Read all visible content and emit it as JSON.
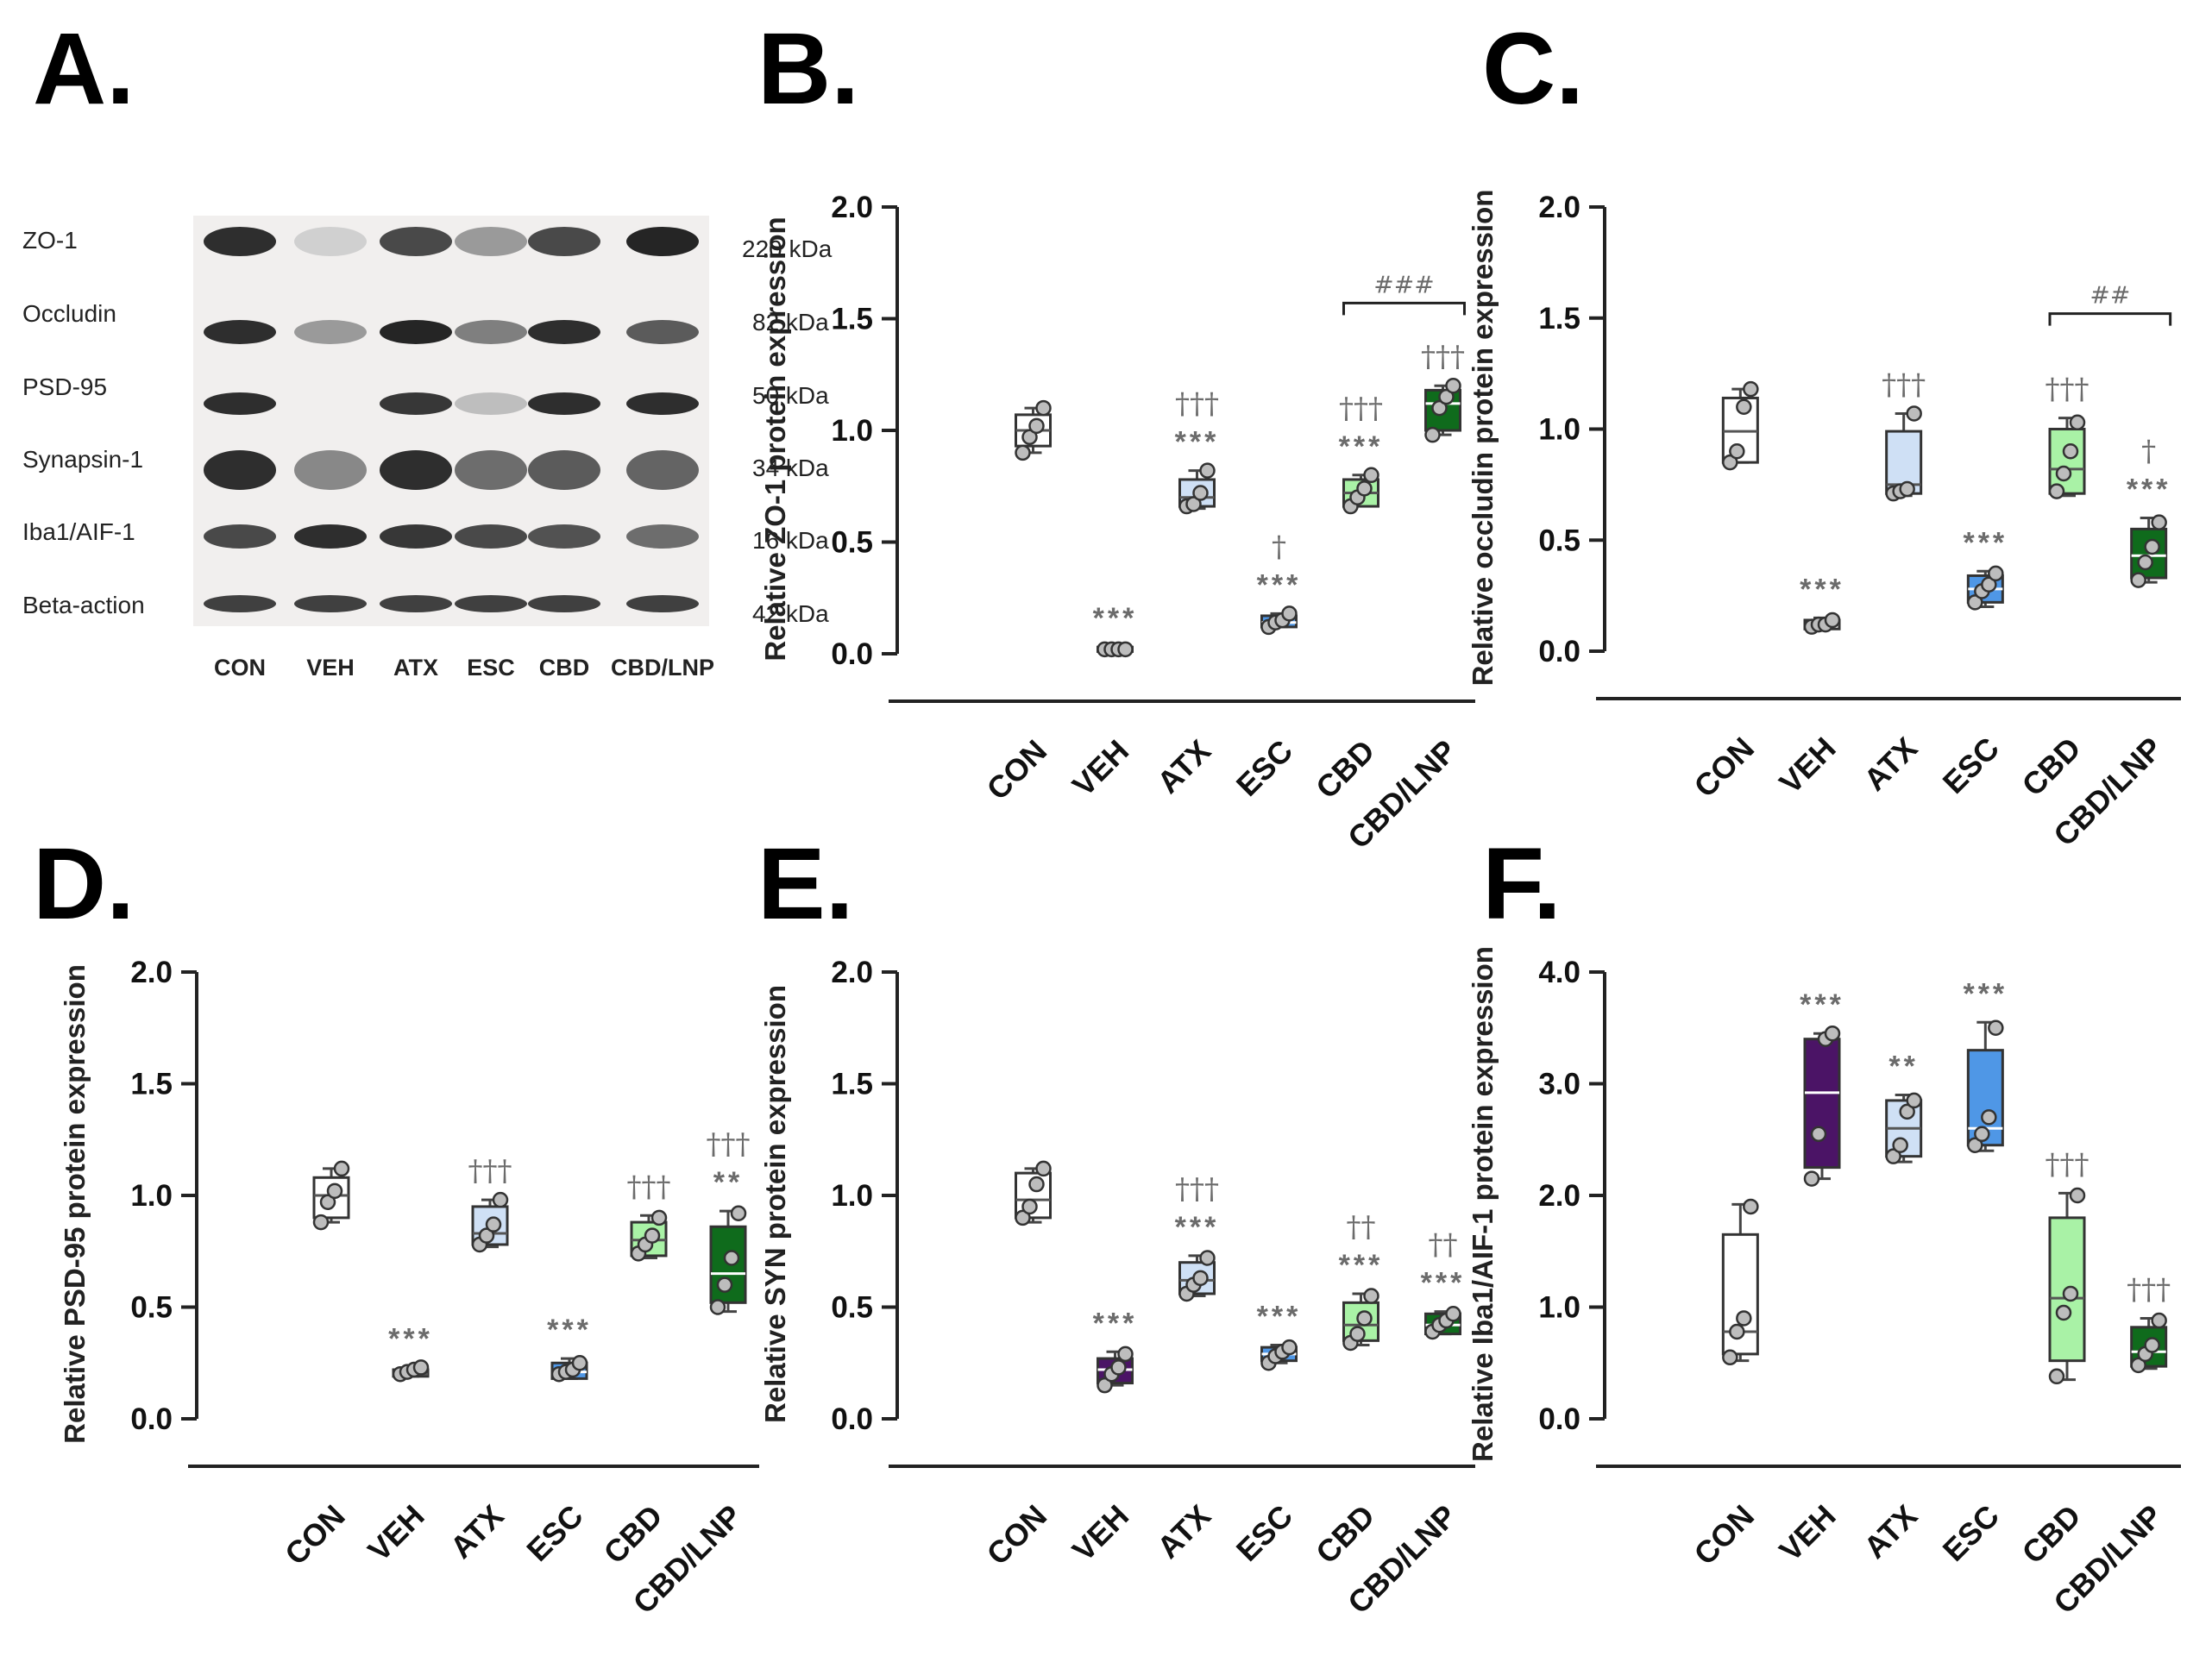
{
  "panel_labels": [
    "A.",
    "B.",
    "C.",
    "D.",
    "E.",
    "F."
  ],
  "blot": {
    "proteins": [
      "ZO-1",
      "Occludin",
      "PSD-95",
      "Synapsin-1",
      "Iba1/AIF-1",
      "Beta-action"
    ],
    "sizes": [
      "220 kDa",
      "82 kDa",
      "50 kDa",
      "34 kDa",
      "16 kDa",
      "42 kDa"
    ],
    "lanes": [
      "CON",
      "VEH",
      "ATX",
      "ESC",
      "CBD",
      "CBD/LNP"
    ],
    "band_intensity": [
      [
        0.95,
        0.05,
        0.8,
        0.35,
        0.8,
        1.0
      ],
      [
        0.95,
        0.35,
        1.0,
        0.5,
        0.95,
        0.7
      ],
      [
        0.95,
        0.0,
        0.9,
        0.15,
        0.95,
        0.95
      ],
      [
        0.95,
        0.45,
        0.95,
        0.6,
        0.7,
        0.65
      ],
      [
        0.8,
        0.95,
        0.9,
        0.8,
        0.75,
        0.6
      ],
      [
        0.85,
        0.85,
        0.85,
        0.85,
        0.85,
        0.85
      ]
    ]
  },
  "colors": {
    "CON": "#ffffff",
    "VEH": "#4b1466",
    "ATX": "#cfe0f5",
    "ESC": "#4f97e6",
    "CBD": "#a9f2a6",
    "CBD/LNP": "#0f6b1c",
    "sig_text": "#6b6b6b",
    "point": "#bdbdbd"
  },
  "chart_data": [
    {
      "panel": "B.",
      "type": "box",
      "ylabel": "Relative ZO-1 protein expression",
      "ylim": [
        0.0,
        2.0
      ],
      "yticks": [
        "0.0",
        "0.5",
        "1.0",
        "1.5",
        "2.0"
      ],
      "categories": [
        "CON",
        "VEH",
        "ATX",
        "ESC",
        "CBD",
        "CBD/LNP"
      ],
      "boxes": [
        {
          "group": "CON",
          "min": 0.9,
          "q1": 0.93,
          "median": 1.0,
          "q3": 1.07,
          "max": 1.1,
          "points": [
            0.9,
            0.97,
            1.02,
            1.1
          ],
          "fill": "#ffffff",
          "median_color": "#555555"
        },
        {
          "group": "VEH",
          "min": 0.01,
          "q1": 0.01,
          "median": 0.02,
          "q3": 0.03,
          "max": 0.03,
          "points": [
            0.02,
            0.02,
            0.02,
            0.02
          ],
          "fill": "#ffffff",
          "median_color": "#555555"
        },
        {
          "group": "ATX",
          "min": 0.65,
          "q1": 0.66,
          "median": 0.7,
          "q3": 0.78,
          "max": 0.82,
          "points": [
            0.66,
            0.67,
            0.72,
            0.82
          ],
          "fill": "#cfe0f5",
          "median_color": "#555555"
        },
        {
          "group": "ESC",
          "min": 0.12,
          "q1": 0.12,
          "median": 0.14,
          "q3": 0.17,
          "max": 0.18,
          "points": [
            0.12,
            0.14,
            0.15,
            0.18
          ],
          "fill": "#4f97e6",
          "median_color": "#ffffff"
        },
        {
          "group": "CBD",
          "min": 0.66,
          "q1": 0.66,
          "median": 0.72,
          "q3": 0.78,
          "max": 0.8,
          "points": [
            0.66,
            0.7,
            0.74,
            0.8
          ],
          "fill": "#a9f2a6",
          "median_color": "#555555"
        },
        {
          "group": "CBD/LNP",
          "min": 0.98,
          "q1": 1.0,
          "median": 1.12,
          "q3": 1.18,
          "max": 1.2,
          "points": [
            0.98,
            1.1,
            1.15,
            1.2
          ],
          "fill": "#0f6b1c",
          "median_color": "#ffffff"
        }
      ],
      "annotations": [
        {
          "group": "VEH",
          "lines": [
            "***"
          ]
        },
        {
          "group": "ATX",
          "lines": [
            "†††",
            "***"
          ]
        },
        {
          "group": "ESC",
          "lines": [
            "†",
            "***"
          ]
        },
        {
          "group": "CBD",
          "lines": [
            "†††",
            "***"
          ]
        },
        {
          "group": "CBD/LNP",
          "lines": [
            "†††"
          ]
        }
      ],
      "bracket": {
        "from": "CBD",
        "to": "CBD/LNP",
        "y": 1.57,
        "label": "###"
      }
    },
    {
      "panel": "C.",
      "type": "box",
      "ylabel": "Relative occludin protein expression",
      "ylim": [
        0.0,
        2.0
      ],
      "yticks": [
        "0.0",
        "0.5",
        "1.0",
        "1.5",
        "2.0"
      ],
      "categories": [
        "CON",
        "VEH",
        "ATX",
        "ESC",
        "CBD",
        "CBD/LNP"
      ],
      "boxes": [
        {
          "group": "CON",
          "min": 0.85,
          "q1": 0.85,
          "median": 0.99,
          "q3": 1.14,
          "max": 1.18,
          "points": [
            0.85,
            0.9,
            1.1,
            1.18
          ],
          "fill": "#ffffff",
          "median_color": "#555555"
        },
        {
          "group": "VEH",
          "min": 0.1,
          "q1": 0.1,
          "median": 0.12,
          "q3": 0.14,
          "max": 0.15,
          "points": [
            0.11,
            0.12,
            0.12,
            0.14
          ],
          "fill": "#ffffff",
          "median_color": "#555555"
        },
        {
          "group": "ATX",
          "min": 0.7,
          "q1": 0.71,
          "median": 0.75,
          "q3": 0.99,
          "max": 1.07,
          "points": [
            0.71,
            0.72,
            0.73,
            1.07
          ],
          "fill": "#cfe0f5",
          "median_color": "#555555"
        },
        {
          "group": "ESC",
          "min": 0.2,
          "q1": 0.22,
          "median": 0.28,
          "q3": 0.34,
          "max": 0.36,
          "points": [
            0.22,
            0.27,
            0.3,
            0.35
          ],
          "fill": "#4f97e6",
          "median_color": "#ffffff"
        },
        {
          "group": "CBD",
          "min": 0.7,
          "q1": 0.71,
          "median": 0.82,
          "q3": 1.0,
          "max": 1.05,
          "points": [
            0.72,
            0.8,
            0.9,
            1.03
          ],
          "fill": "#a9f2a6",
          "median_color": "#555555"
        },
        {
          "group": "CBD/LNP",
          "min": 0.31,
          "q1": 0.33,
          "median": 0.43,
          "q3": 0.55,
          "max": 0.6,
          "points": [
            0.32,
            0.4,
            0.47,
            0.58
          ],
          "fill": "#0f6b1c",
          "median_color": "#ffffff"
        }
      ],
      "annotations": [
        {
          "group": "VEH",
          "lines": [
            "***"
          ]
        },
        {
          "group": "ATX",
          "lines": [
            "†††"
          ]
        },
        {
          "group": "ESC",
          "lines": [
            "***"
          ]
        },
        {
          "group": "CBD",
          "lines": [
            "†††"
          ]
        },
        {
          "group": "CBD/LNP",
          "lines": [
            "†",
            "***"
          ]
        }
      ],
      "bracket": {
        "from": "CBD",
        "to": "CBD/LNP",
        "y": 1.52,
        "label": "##"
      }
    },
    {
      "panel": "D.",
      "type": "box",
      "ylabel": "Relative PSD-95 protein expression",
      "ylim": [
        0.0,
        2.0
      ],
      "yticks": [
        "0.0",
        "0.5",
        "1.0",
        "1.5",
        "2.0"
      ],
      "categories": [
        "CON",
        "VEH",
        "ATX",
        "ESC",
        "CBD",
        "CBD/LNP"
      ],
      "boxes": [
        {
          "group": "CON",
          "min": 0.88,
          "q1": 0.9,
          "median": 1.0,
          "q3": 1.08,
          "max": 1.12,
          "points": [
            0.88,
            0.97,
            1.02,
            1.12
          ],
          "fill": "#ffffff",
          "median_color": "#555555"
        },
        {
          "group": "VEH",
          "min": 0.19,
          "q1": 0.19,
          "median": 0.2,
          "q3": 0.22,
          "max": 0.23,
          "points": [
            0.2,
            0.21,
            0.22,
            0.23
          ],
          "fill": "#ffffff",
          "median_color": "#555555"
        },
        {
          "group": "ATX",
          "min": 0.77,
          "q1": 0.78,
          "median": 0.83,
          "q3": 0.95,
          "max": 0.98,
          "points": [
            0.78,
            0.82,
            0.87,
            0.98
          ],
          "fill": "#cfe0f5",
          "median_color": "#555555"
        },
        {
          "group": "ESC",
          "min": 0.18,
          "q1": 0.18,
          "median": 0.21,
          "q3": 0.25,
          "max": 0.27,
          "points": [
            0.2,
            0.21,
            0.22,
            0.25
          ],
          "fill": "#4f97e6",
          "median_color": "#ffffff"
        },
        {
          "group": "CBD",
          "min": 0.72,
          "q1": 0.73,
          "median": 0.8,
          "q3": 0.88,
          "max": 0.91,
          "points": [
            0.74,
            0.78,
            0.82,
            0.9
          ],
          "fill": "#a9f2a6",
          "median_color": "#555555"
        },
        {
          "group": "CBD/LNP",
          "min": 0.48,
          "q1": 0.52,
          "median": 0.65,
          "q3": 0.86,
          "max": 0.93,
          "points": [
            0.5,
            0.6,
            0.72,
            0.92
          ],
          "fill": "#0f6b1c",
          "median_color": "#ffffff"
        }
      ],
      "annotations": [
        {
          "group": "VEH",
          "lines": [
            "***"
          ]
        },
        {
          "group": "ATX",
          "lines": [
            "†††"
          ]
        },
        {
          "group": "ESC",
          "lines": [
            "***"
          ]
        },
        {
          "group": "CBD",
          "lines": [
            "†††"
          ]
        },
        {
          "group": "CBD/LNP",
          "lines": [
            "†††",
            "**"
          ]
        }
      ]
    },
    {
      "panel": "E.",
      "type": "box",
      "ylabel": "Relative SYN protein expression",
      "ylim": [
        0.0,
        2.0
      ],
      "yticks": [
        "0.0",
        "0.5",
        "1.0",
        "1.5",
        "2.0"
      ],
      "categories": [
        "CON",
        "VEH",
        "ATX",
        "ESC",
        "CBD",
        "CBD/LNP"
      ],
      "boxes": [
        {
          "group": "CON",
          "min": 0.88,
          "q1": 0.9,
          "median": 0.98,
          "q3": 1.1,
          "max": 1.12,
          "points": [
            0.9,
            0.95,
            1.05,
            1.12
          ],
          "fill": "#ffffff",
          "median_color": "#555555"
        },
        {
          "group": "VEH",
          "min": 0.15,
          "q1": 0.16,
          "median": 0.22,
          "q3": 0.27,
          "max": 0.3,
          "points": [
            0.15,
            0.2,
            0.23,
            0.29
          ],
          "fill": "#4b1466",
          "median_color": "#ffffff"
        },
        {
          "group": "ATX",
          "min": 0.55,
          "q1": 0.56,
          "median": 0.62,
          "q3": 0.7,
          "max": 0.73,
          "points": [
            0.56,
            0.6,
            0.63,
            0.72
          ],
          "fill": "#cfe0f5",
          "median_color": "#555555"
        },
        {
          "group": "ESC",
          "min": 0.25,
          "q1": 0.26,
          "median": 0.29,
          "q3": 0.32,
          "max": 0.33,
          "points": [
            0.25,
            0.28,
            0.3,
            0.32
          ],
          "fill": "#4f97e6",
          "median_color": "#ffffff"
        },
        {
          "group": "CBD",
          "min": 0.33,
          "q1": 0.35,
          "median": 0.42,
          "q3": 0.52,
          "max": 0.56,
          "points": [
            0.34,
            0.38,
            0.45,
            0.55
          ],
          "fill": "#a9f2a6",
          "median_color": "#555555"
        },
        {
          "group": "CBD/LNP",
          "min": 0.38,
          "q1": 0.38,
          "median": 0.42,
          "q3": 0.47,
          "max": 0.48,
          "points": [
            0.39,
            0.42,
            0.44,
            0.47
          ],
          "fill": "#0f6b1c",
          "median_color": "#ffffff"
        }
      ],
      "annotations": [
        {
          "group": "VEH",
          "lines": [
            "***"
          ]
        },
        {
          "group": "ATX",
          "lines": [
            "†††",
            "***"
          ]
        },
        {
          "group": "ESC",
          "lines": [
            "***"
          ]
        },
        {
          "group": "CBD",
          "lines": [
            "††",
            "***"
          ]
        },
        {
          "group": "CBD/LNP",
          "lines": [
            "††",
            "***"
          ]
        }
      ]
    },
    {
      "panel": "F.",
      "type": "box",
      "ylabel": "Relative Iba1/AIF-1 protein expression",
      "ylim": [
        0.0,
        4.0
      ],
      "yticks": [
        "0.0",
        "1.0",
        "2.0",
        "3.0",
        "4.0"
      ],
      "categories": [
        "CON",
        "VEH",
        "ATX",
        "ESC",
        "CBD",
        "CBD/LNP"
      ],
      "boxes": [
        {
          "group": "CON",
          "min": 0.52,
          "q1": 0.58,
          "median": 0.78,
          "q3": 1.65,
          "max": 1.92,
          "points": [
            0.55,
            0.78,
            0.9,
            1.9
          ],
          "fill": "#ffffff",
          "median_color": "#555555"
        },
        {
          "group": "VEH",
          "min": 2.15,
          "q1": 2.25,
          "median": 2.92,
          "q3": 3.4,
          "max": 3.45,
          "points": [
            2.15,
            2.55,
            3.4,
            3.45
          ],
          "fill": "#4b1466",
          "median_color": "#ffffff"
        },
        {
          "group": "ATX",
          "min": 2.3,
          "q1": 2.35,
          "median": 2.6,
          "q3": 2.85,
          "max": 2.9,
          "points": [
            2.35,
            2.45,
            2.75,
            2.85
          ],
          "fill": "#cfe0f5",
          "median_color": "#555555"
        },
        {
          "group": "ESC",
          "min": 2.4,
          "q1": 2.45,
          "median": 2.6,
          "q3": 3.3,
          "max": 3.55,
          "points": [
            2.45,
            2.55,
            2.7,
            3.5
          ],
          "fill": "#4f97e6",
          "median_color": "#ffffff"
        },
        {
          "group": "CBD",
          "min": 0.35,
          "q1": 0.52,
          "median": 1.08,
          "q3": 1.8,
          "max": 2.02,
          "points": [
            0.38,
            0.95,
            1.12,
            2.0
          ],
          "fill": "#a9f2a6",
          "median_color": "#555555"
        },
        {
          "group": "CBD/LNP",
          "min": 0.45,
          "q1": 0.47,
          "median": 0.6,
          "q3": 0.82,
          "max": 0.9,
          "points": [
            0.48,
            0.58,
            0.66,
            0.88
          ],
          "fill": "#0f6b1c",
          "median_color": "#ffffff"
        }
      ],
      "annotations": [
        {
          "group": "VEH",
          "lines": [
            "***"
          ]
        },
        {
          "group": "ATX",
          "lines": [
            "**"
          ]
        },
        {
          "group": "ESC",
          "lines": [
            "***"
          ]
        },
        {
          "group": "CBD",
          "lines": [
            "†††"
          ]
        },
        {
          "group": "CBD/LNP",
          "lines": [
            "†††"
          ]
        }
      ]
    }
  ]
}
